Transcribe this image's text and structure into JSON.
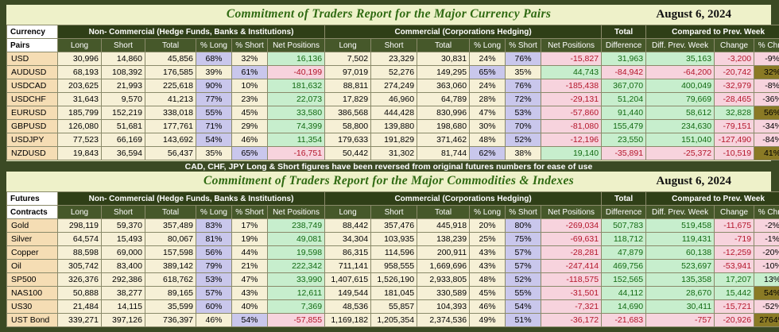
{
  "currency": {
    "title": "Commitment of Traders Report for the Major Currency Pairs",
    "date": "August 6, 2024",
    "row_label_1": "Currency",
    "row_label_2": "Pairs",
    "group_noncomm": "Non- Commercial (Hedge Funds, Banks & Institutions)",
    "group_comm": "Commercial (Corporations Hedging)",
    "group_total": "Total",
    "group_compared": "Compared to Prev. Week",
    "subheaders": [
      "Long",
      "Short",
      "Total",
      "% Long",
      "% Short",
      "Net Positions",
      "Long",
      "Short",
      "Total",
      "% Long",
      "% Short",
      "Net Positions",
      "Difference",
      "Diff. Prev. Week",
      "Change",
      "% Chng"
    ],
    "rows": [
      [
        "USD",
        "30,996",
        "14,860",
        "45,856",
        "68%",
        "32%",
        "16,136",
        "7,502",
        "23,329",
        "30,831",
        "24%",
        "76%",
        "-15,827",
        "31,963",
        "35,163",
        "-3,200",
        "-9%"
      ],
      [
        "AUDUSD",
        "68,193",
        "108,392",
        "176,585",
        "39%",
        "61%",
        "-40,199",
        "97,019",
        "52,276",
        "149,295",
        "65%",
        "35%",
        "44,743",
        "-84,942",
        "-64,200",
        "-20,742",
        "32%"
      ],
      [
        "USDCAD",
        "203,625",
        "21,993",
        "225,618",
        "90%",
        "10%",
        "181,632",
        "88,811",
        "274,249",
        "363,060",
        "24%",
        "76%",
        "-185,438",
        "367,070",
        "400,049",
        "-32,979",
        "-8%"
      ],
      [
        "USDCHF",
        "31,643",
        "9,570",
        "41,213",
        "77%",
        "23%",
        "22,073",
        "17,829",
        "46,960",
        "64,789",
        "28%",
        "72%",
        "-29,131",
        "51,204",
        "79,669",
        "-28,465",
        "-36%"
      ],
      [
        "EURUSD",
        "185,799",
        "152,219",
        "338,018",
        "55%",
        "45%",
        "33,580",
        "386,568",
        "444,428",
        "830,996",
        "47%",
        "53%",
        "-57,860",
        "91,440",
        "58,612",
        "32,828",
        "56%"
      ],
      [
        "GBPUSD",
        "126,080",
        "51,681",
        "177,761",
        "71%",
        "29%",
        "74,399",
        "58,800",
        "139,880",
        "198,680",
        "30%",
        "70%",
        "-81,080",
        "155,479",
        "234,630",
        "-79,151",
        "-34%"
      ],
      [
        "USDJPY",
        "77,523",
        "66,169",
        "143,692",
        "54%",
        "46%",
        "11,354",
        "179,633",
        "191,829",
        "371,462",
        "48%",
        "52%",
        "-12,196",
        "23,550",
        "151,040",
        "-127,490",
        "-84%"
      ],
      [
        "NZDUSD",
        "19,843",
        "36,594",
        "56,437",
        "35%",
        "65%",
        "-16,751",
        "50,442",
        "31,302",
        "81,744",
        "62%",
        "38%",
        "19,140",
        "-35,891",
        "-25,372",
        "-10,519",
        "41%"
      ]
    ],
    "note": "CAD, CHF, JPY Long & Short figures have been reversed from original futures numbers for ease of use"
  },
  "commodities": {
    "title": "Commitment of Traders Report for the Major Commodities & Indexes",
    "date": "August 6, 2024",
    "row_label_1": "Futures",
    "row_label_2": "Contracts",
    "group_noncomm": "Non- Commercial (Hedge Funds, Banks & Institutions)",
    "group_comm": "Commercial (Corporations Hedging)",
    "group_total": "Total",
    "group_compared": "Compared to Prev. Week",
    "subheaders": [
      "Long",
      "Short",
      "Total",
      "% Long",
      "% Short",
      "Net Positions",
      "Long",
      "Short",
      "Total",
      "% Long",
      "% Short",
      "Net Positions",
      "Difference",
      "Diff. Prev. Week",
      "Change",
      "% Chng"
    ],
    "rows": [
      [
        "Gold",
        "298,119",
        "59,370",
        "357,489",
        "83%",
        "17%",
        "238,749",
        "88,442",
        "357,476",
        "445,918",
        "20%",
        "80%",
        "-269,034",
        "507,783",
        "519,458",
        "-11,675",
        "-2%"
      ],
      [
        "Silver",
        "64,574",
        "15,493",
        "80,067",
        "81%",
        "19%",
        "49,081",
        "34,304",
        "103,935",
        "138,239",
        "25%",
        "75%",
        "-69,631",
        "118,712",
        "119,431",
        "-719",
        "-1%"
      ],
      [
        "Copper",
        "88,598",
        "69,000",
        "157,598",
        "56%",
        "44%",
        "19,598",
        "86,315",
        "114,596",
        "200,911",
        "43%",
        "57%",
        "-28,281",
        "47,879",
        "60,138",
        "-12,259",
        "-20%"
      ],
      [
        "Oil",
        "305,742",
        "83,400",
        "389,142",
        "79%",
        "21%",
        "222,342",
        "711,141",
        "958,555",
        "1,669,696",
        "43%",
        "57%",
        "-247,414",
        "469,756",
        "523,697",
        "-53,941",
        "-10%"
      ],
      [
        "SP500",
        "326,376",
        "292,386",
        "618,762",
        "53%",
        "47%",
        "33,990",
        "1,407,615",
        "1,526,190",
        "2,933,805",
        "48%",
        "52%",
        "-118,575",
        "152,565",
        "135,358",
        "17,207",
        "13%"
      ],
      [
        "NAS100",
        "50,888",
        "38,277",
        "89,165",
        "57%",
        "43%",
        "12,611",
        "149,544",
        "181,045",
        "330,589",
        "45%",
        "55%",
        "-31,501",
        "44,112",
        "28,670",
        "15,442",
        "54%"
      ],
      [
        "US30",
        "21,484",
        "14,115",
        "35,599",
        "60%",
        "40%",
        "7,369",
        "48,536",
        "55,857",
        "104,393",
        "46%",
        "54%",
        "-7,321",
        "14,690",
        "30,411",
        "-15,721",
        "-52%"
      ],
      [
        "UST Bond",
        "339,271",
        "397,126",
        "736,397",
        "46%",
        "54%",
        "-57,855",
        "1,169,182",
        "1,205,354",
        "2,374,536",
        "49%",
        "51%",
        "-36,172",
        "-21,683",
        "-757",
        "-20,926",
        "2764%"
      ]
    ]
  },
  "colors": {
    "background": "#3b4a24",
    "panel": "#eef1c9",
    "title_green": "#2f6a12",
    "positive_bg": "#c7eecd",
    "negative_bg": "#f7d3dd",
    "highlight_bg": "#c9c7ec",
    "olive_bg": "#8a7a25"
  }
}
